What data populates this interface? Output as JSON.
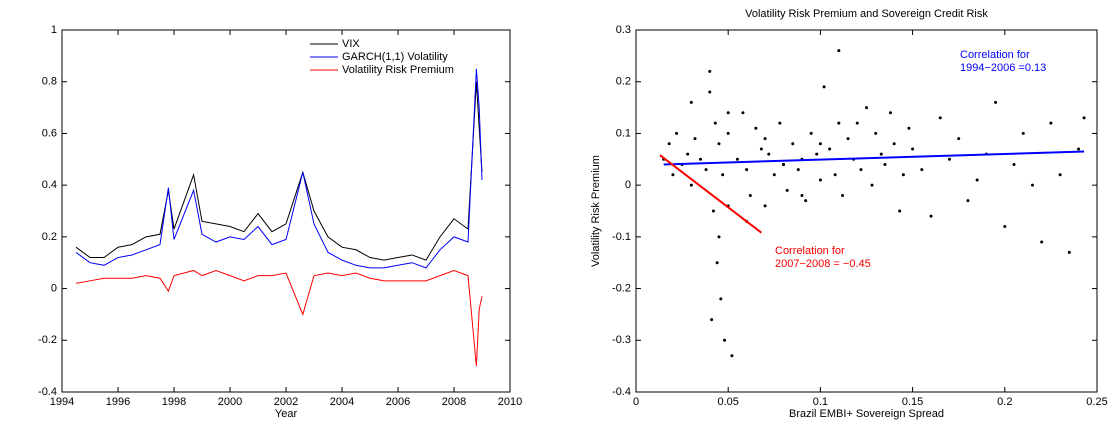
{
  "chart_data": [
    {
      "type": "line",
      "xlabel": "Year",
      "x": [
        1994.5,
        1995,
        1995.5,
        1996,
        1996.5,
        1997,
        1997.5,
        1997.8,
        1998,
        1998.7,
        1999,
        1999.5,
        2000,
        2000.5,
        2001,
        2001.5,
        2002,
        2002.6,
        2003,
        2003.5,
        2004,
        2004.5,
        2005,
        2005.5,
        2006,
        2006.5,
        2007,
        2007.5,
        2008,
        2008.5,
        2008.8,
        2008.9,
        2009
      ],
      "series": [
        {
          "name": "VIX",
          "color": "#000000",
          "values": [
            0.16,
            0.12,
            0.12,
            0.16,
            0.17,
            0.2,
            0.21,
            0.38,
            0.23,
            0.44,
            0.26,
            0.25,
            0.24,
            0.22,
            0.29,
            0.22,
            0.25,
            0.45,
            0.3,
            0.2,
            0.16,
            0.15,
            0.12,
            0.11,
            0.12,
            0.13,
            0.11,
            0.2,
            0.27,
            0.23,
            0.8,
            0.62,
            0.45
          ]
        },
        {
          "name": "GARCH(1,1) Volatility",
          "color": "#0000ff",
          "values": [
            0.14,
            0.1,
            0.09,
            0.12,
            0.13,
            0.15,
            0.17,
            0.39,
            0.19,
            0.38,
            0.21,
            0.18,
            0.2,
            0.19,
            0.24,
            0.17,
            0.19,
            0.45,
            0.25,
            0.14,
            0.11,
            0.09,
            0.08,
            0.08,
            0.09,
            0.1,
            0.08,
            0.15,
            0.2,
            0.18,
            0.85,
            0.7,
            0.42
          ]
        },
        {
          "name": "Volatility Risk Premium",
          "color": "#ff0000",
          "values": [
            0.02,
            0.03,
            0.04,
            0.04,
            0.04,
            0.05,
            0.04,
            -0.01,
            0.05,
            0.07,
            0.05,
            0.07,
            0.05,
            0.03,
            0.05,
            0.05,
            0.06,
            -0.1,
            0.05,
            0.06,
            0.05,
            0.06,
            0.04,
            0.03,
            0.03,
            0.03,
            0.03,
            0.05,
            0.07,
            0.05,
            -0.3,
            -0.08,
            -0.03
          ]
        }
      ],
      "xlim": [
        1994,
        2010
      ],
      "xticks": [
        1994,
        1996,
        1998,
        2000,
        2002,
        2004,
        2006,
        2008,
        2010
      ],
      "ylim": [
        -0.4,
        1
      ],
      "yticks": [
        -0.4,
        -0.2,
        0,
        0.2,
        0.4,
        0.6,
        0.8,
        1
      ],
      "legend": "upper-right"
    },
    {
      "type": "scatter",
      "title": "Volatility Risk Premium and Sovereign Credit Risk",
      "xlabel": "Brazil EMBI+ Sovereign Spread",
      "ylabel": "Volatility Risk Premium",
      "color": "#000000",
      "x": [
        0.015,
        0.018,
        0.02,
        0.022,
        0.025,
        0.028,
        0.03,
        0.032,
        0.035,
        0.038,
        0.04,
        0.041,
        0.042,
        0.043,
        0.044,
        0.045,
        0.046,
        0.047,
        0.048,
        0.05,
        0.052,
        0.055,
        0.058,
        0.06,
        0.062,
        0.065,
        0.068,
        0.07,
        0.072,
        0.075,
        0.078,
        0.08,
        0.082,
        0.085,
        0.088,
        0.09,
        0.092,
        0.095,
        0.098,
        0.1,
        0.102,
        0.105,
        0.108,
        0.11,
        0.112,
        0.115,
        0.118,
        0.12,
        0.122,
        0.125,
        0.128,
        0.13,
        0.133,
        0.135,
        0.138,
        0.14,
        0.143,
        0.145,
        0.148,
        0.15,
        0.155,
        0.16,
        0.165,
        0.17,
        0.175,
        0.18,
        0.185,
        0.19,
        0.195,
        0.2,
        0.205,
        0.21,
        0.215,
        0.22,
        0.225,
        0.23,
        0.235,
        0.24,
        0.243,
        0.04,
        0.045,
        0.05,
        0.06,
        0.07,
        0.09,
        0.1,
        0.11,
        0.05,
        0.03,
        0.08
      ],
      "values": [
        0.05,
        0.08,
        0.02,
        0.1,
        0.04,
        0.06,
        0.0,
        0.09,
        0.05,
        0.03,
        0.22,
        -0.26,
        -0.05,
        0.12,
        -0.15,
        0.08,
        -0.22,
        0.02,
        -0.3,
        0.1,
        -0.33,
        0.05,
        0.14,
        0.03,
        -0.02,
        0.11,
        0.07,
        -0.04,
        0.06,
        0.02,
        0.12,
        0.04,
        -0.01,
        0.08,
        0.03,
        0.05,
        -0.03,
        0.1,
        0.06,
        0.01,
        0.19,
        0.07,
        0.02,
        0.26,
        -0.02,
        0.09,
        0.05,
        0.12,
        0.03,
        0.15,
        0.0,
        0.1,
        0.06,
        0.04,
        0.14,
        0.08,
        -0.05,
        0.02,
        0.11,
        0.07,
        0.03,
        -0.06,
        0.13,
        0.05,
        0.09,
        -0.03,
        0.01,
        0.06,
        0.16,
        -0.08,
        0.04,
        0.1,
        0.0,
        -0.11,
        0.12,
        0.02,
        -0.13,
        0.07,
        0.13,
        0.18,
        -0.1,
        0.14,
        -0.07,
        0.09,
        -0.02,
        0.08,
        0.12,
        -0.04,
        0.16,
        0.04
      ],
      "fit_lines": [
        {
          "color": "#0000ff",
          "x": [
            0.015,
            0.243
          ],
          "values": [
            0.04,
            0.065
          ]
        },
        {
          "color": "#ff0000",
          "x": [
            0.013,
            0.068
          ],
          "values": [
            0.058,
            -0.092
          ]
        }
      ],
      "annotations": [
        {
          "color": "#0000ff",
          "text": [
            "Correlation for",
            "1994−2006 =0.13"
          ]
        },
        {
          "color": "#ff0000",
          "text": [
            "Correlation for",
            "2007−2008 = −0.45"
          ]
        }
      ],
      "xlim": [
        0,
        0.25
      ],
      "xticks": [
        0,
        0.05,
        0.1,
        0.15,
        0.2,
        0.25
      ],
      "ylim": [
        -0.4,
        0.3
      ],
      "yticks": [
        -0.4,
        -0.3,
        -0.2,
        -0.1,
        0,
        0.1,
        0.2,
        0.3
      ]
    }
  ]
}
